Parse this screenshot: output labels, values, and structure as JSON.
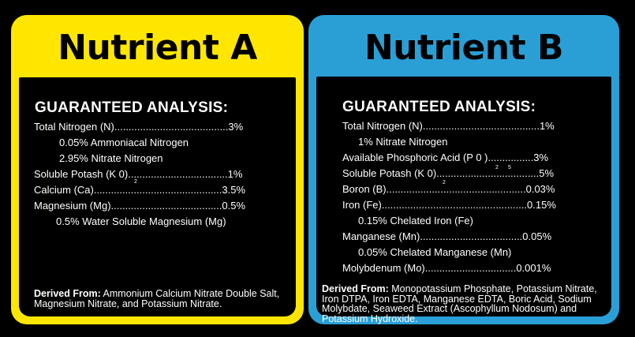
{
  "nutrient_a": {
    "title": "Nutrient A",
    "heading": "GUARANTEED ANALYSIS:",
    "rows": [
      "Total Nitrogen (N)........................................3%",
      "0.05% Ammoniacal Nitrogen",
      "2.95% Nitrate Nitrogen",
      "Soluble Potash (K 0)...................................1%",
      "Calcium (Ca).............................................3.5%",
      "Magnesium (Mg).......................................0.5%",
      "0.5% Water Soluble Magnesium (Mg)"
    ],
    "subscripts": [
      "2"
    ],
    "derived_label": "Derived From:",
    "derived_text": "Ammonium Calcium Nitrate Double Salt, Magnesium Nitrate, and Potassium Nitrate."
  },
  "nutrient_b": {
    "title": "Nutrient B",
    "heading": "GUARANTEED ANALYSIS:",
    "rows": [
      "Total Nitrogen (N).........................................1%",
      "1% Nitrate Nitrogen",
      "Available Phosphoric Acid (P 0 )................3%",
      "Soluble Potash (K 0)....................................5%",
      "Boron (B).................................................0.03%",
      "Iron (Fe)...................................................0.15%",
      "0.15% Chelated Iron (Fe)",
      "Manganese (Mn)....................................0.05%",
      "0.05% Chelated Manganese (Mn)",
      "Molybdenum (Mo)................................0.001%"
    ],
    "subscripts": [
      "2",
      "5",
      "2"
    ],
    "derived_label": "Derived From:",
    "derived_text": "Monopotassium Phosphate, Potassium Nitrate, Iron DTPA, Iron EDTA, Manganese EDTA, Boric Acid, Sodium Molybdate, Seaweed Extract (Ascophyllum Nodosum) and Potassium Hydroxide."
  },
  "colors": {
    "background": "#000000",
    "card_a": "#ffe600",
    "card_b": "#2a9fd6",
    "panel": "#000000",
    "text": "#ffffff"
  }
}
